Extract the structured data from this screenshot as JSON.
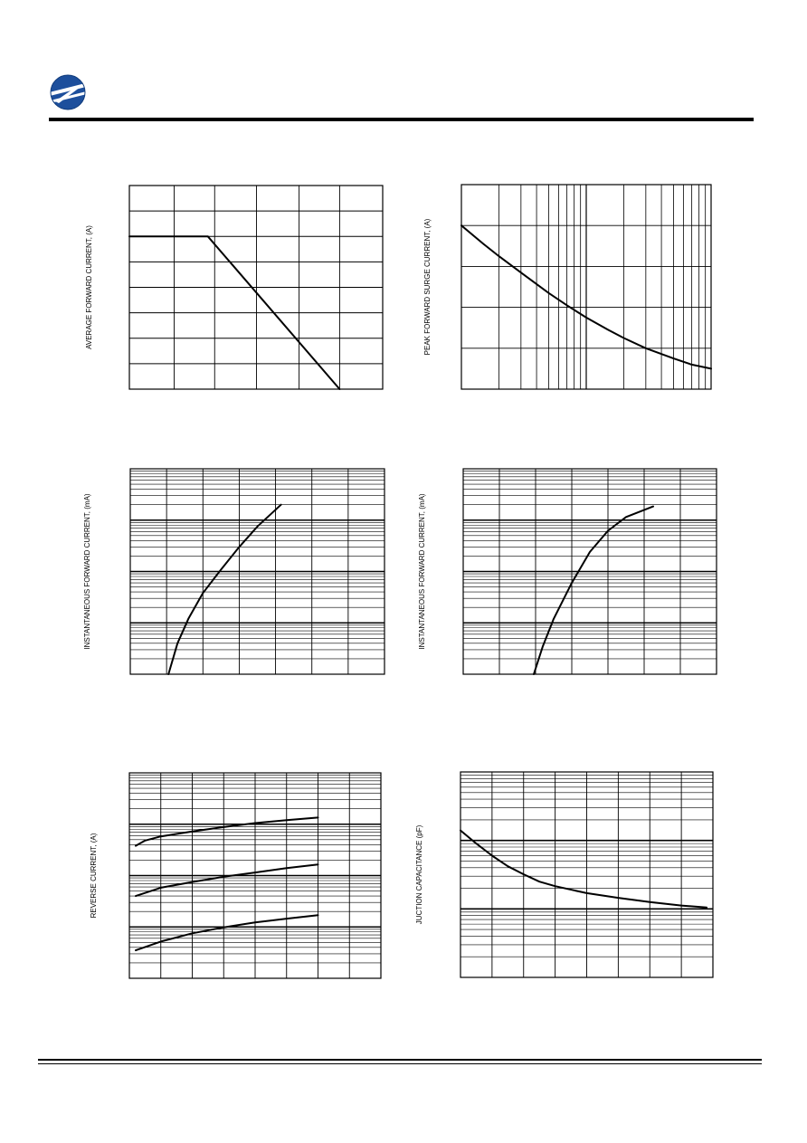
{
  "header": {
    "logo_icon": "company-globe-logo-icon"
  },
  "chart_data": [
    {
      "type": "line",
      "title": "",
      "xlabel": "",
      "ylabel": "AVERAGE FORWARD CURRENT, (A)",
      "xscale": "linear",
      "yscale": "linear",
      "xlim": [
        0,
        6
      ],
      "ylim": [
        0,
        8
      ],
      "x_gridlines": [
        1.06,
        2.02,
        3.01,
        4.02,
        4.98
      ],
      "y_gridlines": [
        1,
        2,
        3,
        4,
        5,
        6,
        7
      ],
      "grid": true,
      "series": [
        {
          "points": [
            [
              0,
              6
            ],
            [
              1.86,
              6
            ],
            [
              4.98,
              0
            ]
          ]
        }
      ]
    },
    {
      "type": "line",
      "title": "",
      "xlabel": "",
      "ylabel": "PEAK FORWARD SURGE CURRENT, (A)",
      "xscale": "log",
      "yscale": "linear",
      "xlim": [
        1,
        100
      ],
      "ylim": [
        0,
        5
      ],
      "y_gridlines": [
        1,
        2,
        3,
        4
      ],
      "grid": true,
      "series": [
        {
          "points": [
            [
              1,
              4.0
            ],
            [
              1.5,
              3.55
            ],
            [
              2,
              3.25
            ],
            [
              3,
              2.85
            ],
            [
              5,
              2.35
            ],
            [
              7,
              2.05
            ],
            [
              10,
              1.75
            ],
            [
              15,
              1.45
            ],
            [
              20,
              1.25
            ],
            [
              30,
              1.0
            ],
            [
              50,
              0.75
            ],
            [
              70,
              0.6
            ],
            [
              100,
              0.5
            ]
          ]
        }
      ]
    },
    {
      "type": "line",
      "title": "",
      "xlabel": "",
      "ylabel": "INSTANTANEOUS FORWARD CURRENT, (mA)",
      "xscale": "linear",
      "yscale": "log",
      "xlim": [
        0,
        7
      ],
      "ylim": [
        1,
        10000
      ],
      "grid": true,
      "series": [
        {
          "points": [
            [
              1.05,
              1.0
            ],
            [
              1.3,
              4.0
            ],
            [
              1.6,
              12
            ],
            [
              2.0,
              38
            ],
            [
              2.5,
              110
            ],
            [
              3.0,
              300
            ],
            [
              3.5,
              750
            ],
            [
              4.15,
              2000
            ]
          ]
        }
      ]
    },
    {
      "type": "line",
      "title": "",
      "xlabel": "",
      "ylabel": "INSTANTANEOUS FORWARD CURRENT, (mA)",
      "xscale": "linear",
      "yscale": "log",
      "xlim": [
        0,
        7
      ],
      "ylim": [
        1,
        10000
      ],
      "grid": true,
      "series": [
        {
          "points": [
            [
              1.95,
              1.0
            ],
            [
              2.2,
              3.5
            ],
            [
              2.5,
              12
            ],
            [
              3.0,
              60
            ],
            [
              3.5,
              240
            ],
            [
              4.0,
              620
            ],
            [
              4.5,
              1150
            ],
            [
              5.25,
              1850
            ]
          ]
        }
      ]
    },
    {
      "type": "line",
      "title": "",
      "xlabel": "",
      "ylabel": "REVERSE CURRENT, (A)",
      "xscale": "linear",
      "yscale": "log",
      "xlim": [
        0,
        8
      ],
      "ylim": [
        0.0001,
        1
      ],
      "grid": true,
      "series": [
        {
          "points": [
            [
              0.2,
              0.038
            ],
            [
              0.5,
              0.048
            ],
            [
              1,
              0.058
            ],
            [
              2,
              0.072
            ],
            [
              3,
              0.088
            ],
            [
              4,
              0.105
            ],
            [
              5,
              0.12
            ],
            [
              6,
              0.135
            ]
          ]
        },
        {
          "points": [
            [
              0.2,
              0.004
            ],
            [
              1,
              0.0058
            ],
            [
              2,
              0.0075
            ],
            [
              3,
              0.0095
            ],
            [
              4,
              0.0115
            ],
            [
              5,
              0.014
            ],
            [
              6,
              0.0165
            ]
          ]
        },
        {
          "points": [
            [
              0.2,
              0.00035
            ],
            [
              1,
              0.00052
            ],
            [
              2,
              0.00075
            ],
            [
              3,
              0.00098
            ],
            [
              4,
              0.00122
            ],
            [
              5,
              0.00145
            ],
            [
              6,
              0.0017
            ]
          ]
        }
      ]
    },
    {
      "type": "line",
      "title": "",
      "xlabel": "",
      "ylabel": "JUCTION CAPACITANCE (pF)",
      "xscale": "linear",
      "yscale": "log",
      "xlim": [
        0,
        8
      ],
      "ylim": [
        1,
        1000
      ],
      "grid": true,
      "series": [
        {
          "points": [
            [
              0,
              140
            ],
            [
              0.5,
              90
            ],
            [
              1,
              60
            ],
            [
              1.5,
              42
            ],
            [
              2,
              32
            ],
            [
              2.5,
              25
            ],
            [
              3,
              21.5
            ],
            [
              4,
              17
            ],
            [
              5,
              14.5
            ],
            [
              6,
              12.6
            ],
            [
              7,
              11.2
            ],
            [
              7.8,
              10.5
            ]
          ]
        }
      ]
    }
  ]
}
